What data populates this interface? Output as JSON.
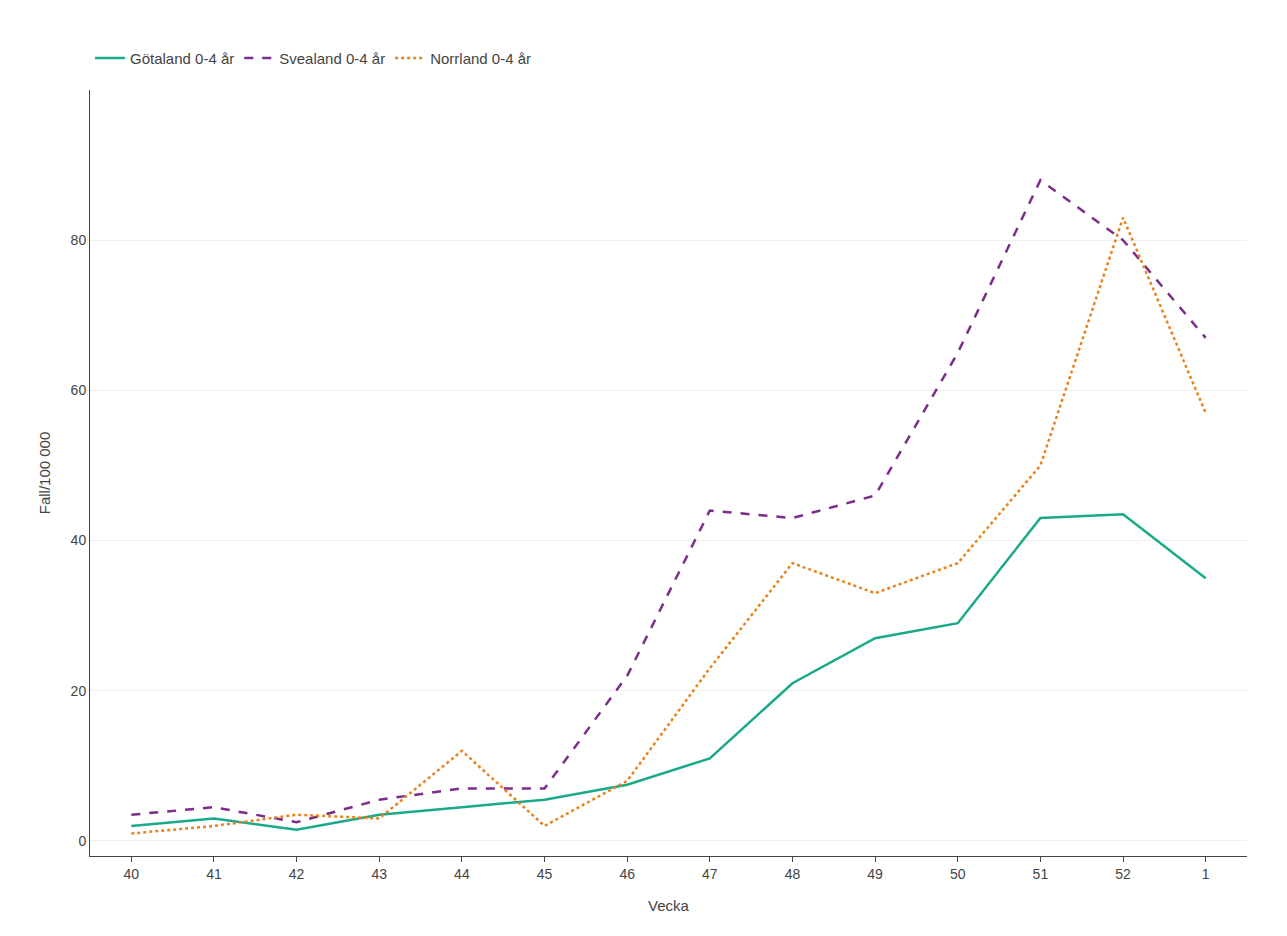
{
  "chart_data": {
    "type": "line",
    "x_label": "Vecka",
    "y_label": "Fall/100 000",
    "categories": [
      "40",
      "41",
      "42",
      "43",
      "44",
      "45",
      "46",
      "47",
      "48",
      "49",
      "50",
      "51",
      "52",
      "1"
    ],
    "series": [
      {
        "name": "Götaland 0-4 år",
        "color": "#1aaa8a",
        "line_style": "solid",
        "values": [
          2.0,
          3.0,
          1.5,
          3.5,
          4.5,
          5.5,
          7.5,
          11.0,
          21.0,
          27.0,
          29.0,
          43.0,
          43.5,
          35.0
        ]
      },
      {
        "name": "Svealand 0-4 år",
        "color": "#7b2d8b",
        "line_style": "dashed",
        "values": [
          3.5,
          4.5,
          2.5,
          5.5,
          7.0,
          7.0,
          22.0,
          44.0,
          43.0,
          46.0,
          65.0,
          88.0,
          80.0,
          67.0
        ]
      },
      {
        "name": "Norrland 0-4 år",
        "color": "#e8821a",
        "line_style": "dotted",
        "values": [
          1.0,
          2.0,
          3.5,
          3.0,
          12.0,
          2.0,
          8.0,
          23.0,
          37.0,
          33.0,
          37.0,
          50.0,
          83.0,
          57.0
        ]
      }
    ],
    "ylim": [
      -2,
      100
    ],
    "yticks": [
      0,
      20,
      40,
      60,
      80
    ],
    "grid": true,
    "legend": "upper left"
  }
}
